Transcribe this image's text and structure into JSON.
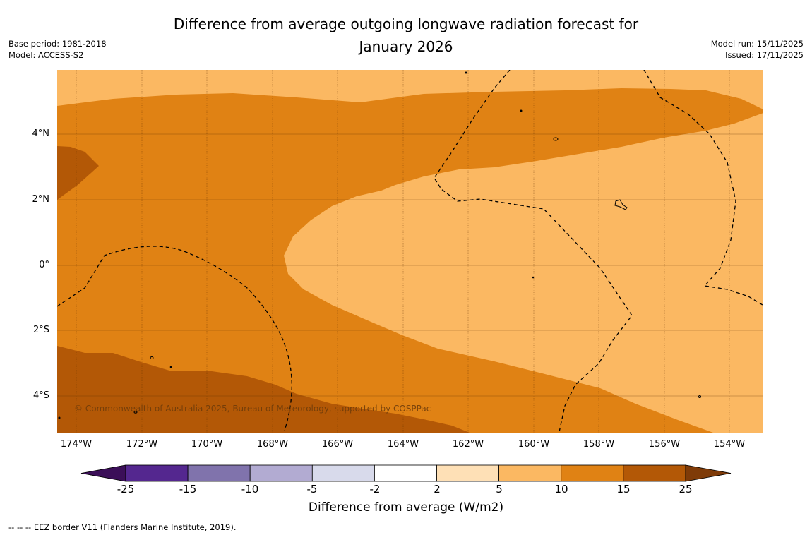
{
  "title_line1": "Difference from average outgoing longwave radiation forecast for",
  "title_line2": "January 2026",
  "base_period": "Base period: 1981-2018",
  "model": "Model: ACCESS-S2",
  "model_run": "Model run: 15/11/2025",
  "issued": "Issued: 17/11/2025",
  "lat_labels": [
    "4°N",
    "2°N",
    "0°",
    "2°S",
    "4°S"
  ],
  "lon_labels": [
    "174°W",
    "172°W",
    "170°W",
    "168°W",
    "166°W",
    "164°W",
    "162°W",
    "160°W",
    "158°W",
    "156°W",
    "154°W"
  ],
  "copyright": "© Commonwealth of Australia 2025, Bureau of Meteorology, supported by COSPPac",
  "colorbar": {
    "ticks": [
      "-25",
      "-15",
      "-10",
      "-5",
      "-2",
      "2",
      "5",
      "10",
      "15",
      "25"
    ],
    "colors": [
      "#3b0f58",
      "#54278f",
      "#8073ac",
      "#b2abd2",
      "#d8daeb",
      "#ffffff",
      "#fee0b6",
      "#fbb862",
      "#e08214",
      "#b35806",
      "#7f3b08"
    ],
    "label": "Difference from average (W/m2)"
  },
  "footnote": "--  --  -- EEZ border V11 (Flanders Marine Institute, 2019)."
}
